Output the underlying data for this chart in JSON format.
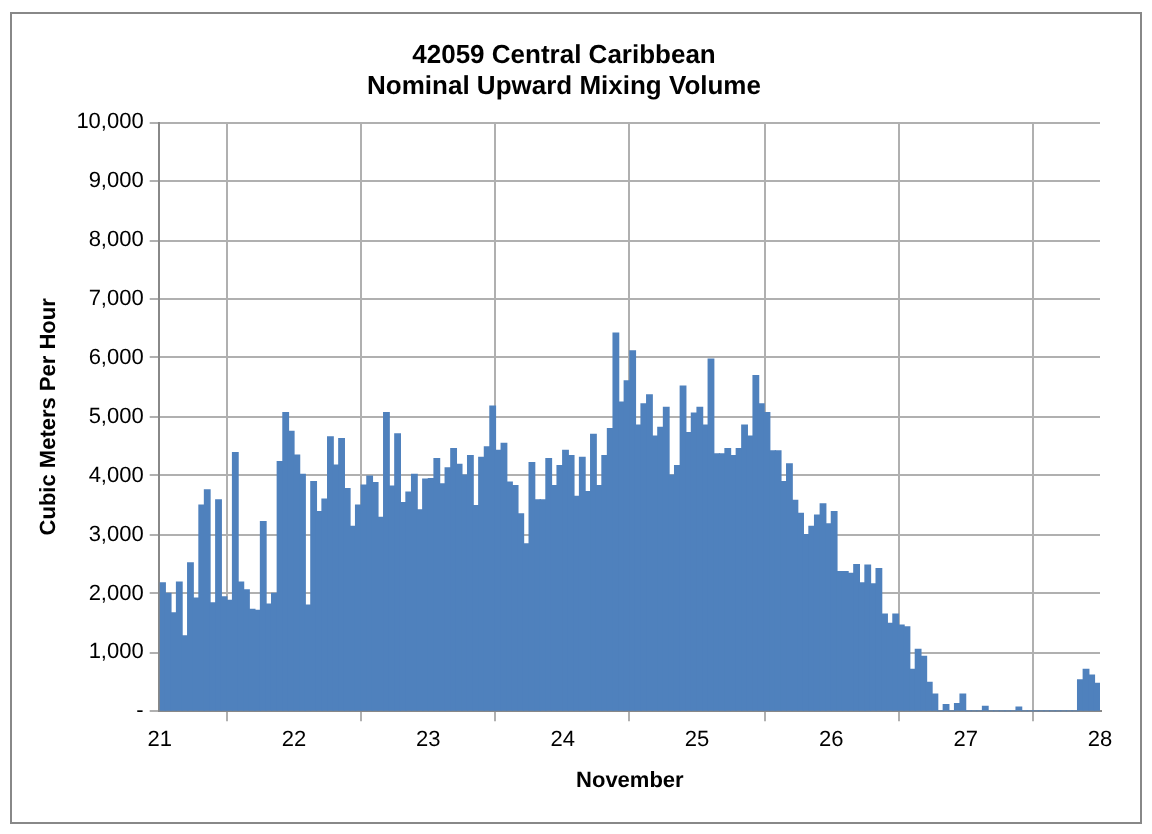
{
  "chart_data": {
    "type": "bar",
    "title": "42059 Central Caribbean\nNominal Upward Mixing Volume",
    "xlabel": "November",
    "ylabel": "Cubic Meters Per Hour",
    "x": [
      21.021,
      21.063,
      21.104,
      21.146,
      21.188,
      21.229,
      21.271,
      21.313,
      21.354,
      21.396,
      21.438,
      21.479,
      21.521,
      21.563,
      21.604,
      21.646,
      21.688,
      21.729,
      21.771,
      21.813,
      21.854,
      21.896,
      21.938,
      21.979,
      22.021,
      22.063,
      22.104,
      22.146,
      22.188,
      22.229,
      22.271,
      22.313,
      22.354,
      22.396,
      22.438,
      22.479,
      22.521,
      22.563,
      22.604,
      22.646,
      22.688,
      22.729,
      22.771,
      22.813,
      22.854,
      22.896,
      22.938,
      22.979,
      23.021,
      23.063,
      23.104,
      23.146,
      23.188,
      23.229,
      23.271,
      23.313,
      23.354,
      23.396,
      23.438,
      23.479,
      23.521,
      23.563,
      23.604,
      23.646,
      23.688,
      23.729,
      23.771,
      23.813,
      23.854,
      23.896,
      23.938,
      23.979,
      24.021,
      24.063,
      24.104,
      24.146,
      24.188,
      24.229,
      24.271,
      24.313,
      24.354,
      24.396,
      24.438,
      24.479,
      24.521,
      24.563,
      24.604,
      24.646,
      24.688,
      24.729,
      24.771,
      24.813,
      24.854,
      24.896,
      24.938,
      24.979,
      25.021,
      25.063,
      25.104,
      25.146,
      25.188,
      25.229,
      25.271,
      25.313,
      25.354,
      25.396,
      25.438,
      25.479,
      25.521,
      25.563,
      25.604,
      25.646,
      25.688,
      25.729,
      25.771,
      25.813,
      25.854,
      25.896,
      25.938,
      25.979,
      26.021,
      26.063,
      26.104,
      26.146,
      26.188,
      26.229,
      26.271,
      26.313,
      26.354,
      26.396,
      26.438,
      26.479,
      26.521,
      26.563,
      26.604,
      26.646,
      26.688,
      26.729,
      26.771,
      26.813,
      26.854,
      26.896,
      26.938,
      26.979,
      27.021,
      27.063,
      27.104,
      27.146,
      27.188,
      27.229,
      27.271,
      27.313,
      27.354,
      27.396,
      27.438,
      27.479,
      27.521,
      27.563,
      27.604,
      27.646,
      27.688,
      27.729,
      27.771,
      27.813,
      27.854,
      27.896,
      27.938,
      27.979
    ],
    "values": [
      2180,
      2000,
      1670,
      2190,
      1280,
      2520,
      1920,
      3500,
      3760,
      1840,
      3590,
      1940,
      1880,
      4390,
      2190,
      2060,
      1730,
      1710,
      3220,
      1820,
      2000,
      4240,
      5070,
      4750,
      4350,
      4020,
      1800,
      3900,
      3390,
      3600,
      4660,
      4180,
      4630,
      3780,
      3140,
      3500,
      3840,
      3990,
      3880,
      3290,
      5070,
      3820,
      4710,
      3540,
      3720,
      4020,
      3420,
      3940,
      3950,
      4290,
      3860,
      4130,
      4460,
      4190,
      4010,
      4340,
      3490,
      4310,
      4490,
      5180,
      4430,
      4550,
      3890,
      3830,
      3350,
      2840,
      4220,
      3590,
      3590,
      4290,
      3830,
      4170,
      4430,
      4340,
      3650,
      4310,
      3730,
      4700,
      3830,
      4340,
      4800,
      6420,
      5250,
      5610,
      6120,
      4860,
      5220,
      5370,
      4670,
      4820,
      5160,
      4010,
      4170,
      5520,
      4730,
      5060,
      5160,
      4860,
      5980,
      4370,
      4370,
      4460,
      4340,
      4460,
      4860,
      4670,
      5700,
      5220,
      5070,
      4420,
      4420,
      3900,
      4200,
      3580,
      3360,
      3000,
      3140,
      3330,
      3520,
      3180,
      3390,
      2370,
      2370,
      2340,
      2490,
      2180,
      2480,
      2160,
      2420,
      1650,
      1490,
      1650,
      1460,
      1430,
      710,
      1050,
      930,
      490,
      290,
      0,
      110,
      0,
      130,
      290,
      0,
      0,
      0,
      80,
      0,
      0,
      0,
      0,
      0,
      70,
      0,
      0,
      0,
      0,
      0,
      0,
      0,
      0,
      0,
      0,
      530,
      710,
      610,
      470
    ],
    "color": "#4f81bd",
    "xlim": [
      21,
      28
    ],
    "xticks": [
      21,
      22,
      23,
      24,
      25,
      26,
      27,
      28
    ],
    "ylim": [
      0,
      10000
    ],
    "yticks": [
      {
        "value": 0,
        "label": "-"
      },
      {
        "value": 1000,
        "label": "1,000"
      },
      {
        "value": 2000,
        "label": "2,000"
      },
      {
        "value": 3000,
        "label": "3,000"
      },
      {
        "value": 4000,
        "label": "4,000"
      },
      {
        "value": 5000,
        "label": "5,000"
      },
      {
        "value": 6000,
        "label": "6,000"
      },
      {
        "value": 7000,
        "label": "7,000"
      },
      {
        "value": 8000,
        "label": "8,000"
      },
      {
        "value": 9000,
        "label": "9,000"
      },
      {
        "value": 10000,
        "label": "10,000"
      }
    ],
    "grid": true
  }
}
